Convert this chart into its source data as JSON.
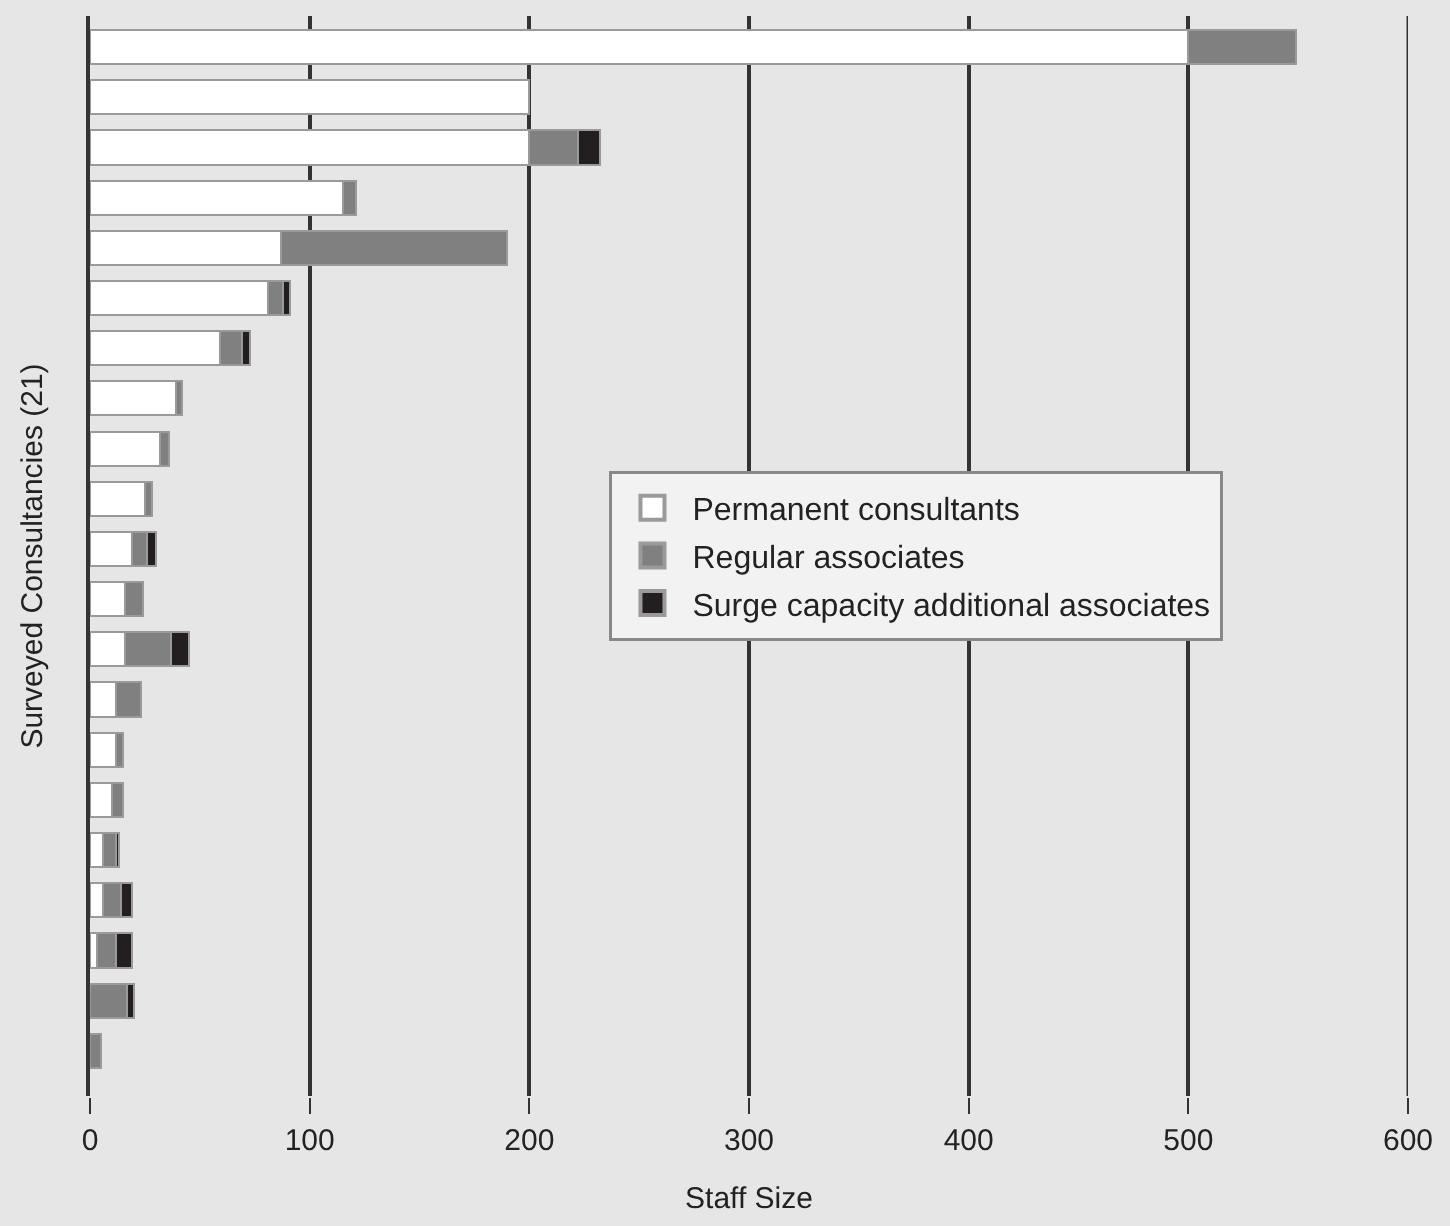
{
  "chart_data": {
    "type": "bar",
    "orientation": "horizontal",
    "stacked": true,
    "xlabel": "Staff Size",
    "ylabel": "Surveyed Consultancies (21)",
    "categories": [
      null,
      null,
      null,
      null,
      null,
      null,
      null,
      null,
      null,
      null,
      null,
      null,
      null,
      null,
      null,
      null,
      null,
      null,
      null,
      null,
      null
    ],
    "series": [
      {
        "name": "Permanent consultants",
        "color": "#ffffff",
        "values": [
          500,
          200,
          200,
          115,
          87,
          81,
          59,
          39,
          32,
          25,
          19,
          16,
          16,
          12,
          12,
          10,
          6,
          6,
          3,
          0,
          0
        ]
      },
      {
        "name": "Regular associates",
        "color": "#808080",
        "values": [
          49,
          0,
          22,
          6,
          103,
          7,
          10,
          3,
          4,
          3,
          7,
          8,
          21,
          11,
          3,
          5,
          6,
          8,
          9,
          17,
          5
        ]
      },
      {
        "name": "Surge capacity additional associates",
        "color": "#231f20",
        "values": [
          0,
          0,
          10,
          0,
          0,
          3,
          4,
          0,
          0,
          0,
          4,
          0,
          8,
          0,
          0,
          0,
          1,
          5,
          7,
          3,
          0
        ]
      }
    ],
    "xlim": [
      0,
      600
    ],
    "xticks": [
      0,
      100,
      200,
      300,
      400,
      500,
      600
    ],
    "grid": "x",
    "legend": "right"
  }
}
